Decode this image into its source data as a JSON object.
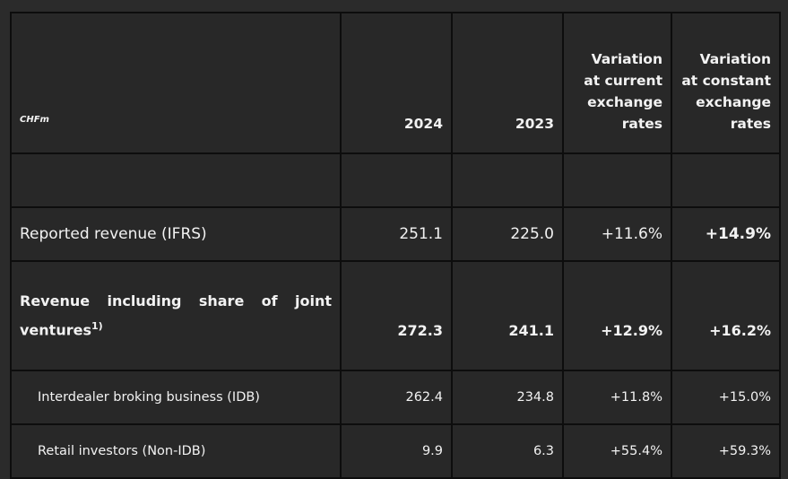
{
  "header": {
    "unit": "CHFm",
    "col_2024": "2024",
    "col_2023": "2023",
    "col_var_current": "Variation at current exchange rates",
    "col_var_constant": "Variation at constant exchange rates"
  },
  "rows": [
    {
      "label": "Reported revenue (IFRS)",
      "v2024": "251.1",
      "v2023": "225.0",
      "var_current": "+11.6%",
      "var_constant": "+14.9%"
    },
    {
      "label": "Revenue including share of joint ventures",
      "footnote": "1)",
      "v2024": "272.3",
      "v2023": "241.1",
      "var_current": "+12.9%",
      "var_constant": "+16.2%"
    },
    {
      "label": "Interdealer broking business (IDB)",
      "v2024": "262.4",
      "v2023": "234.8",
      "var_current": "+11.8%",
      "var_constant": "+15.0%"
    },
    {
      "label": "Retail investors (Non-IDB)",
      "v2024": "9.9",
      "v2023": "6.3",
      "var_current": "+55.4%",
      "var_constant": "+59.3%"
    }
  ]
}
